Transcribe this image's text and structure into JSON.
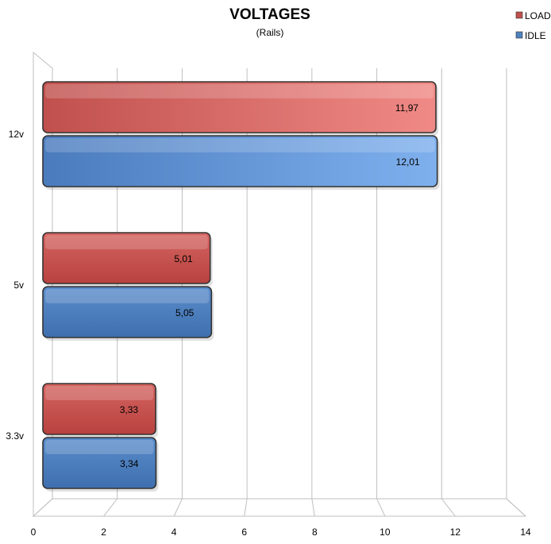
{
  "chart_data": {
    "type": "bar",
    "orientation": "horizontal",
    "title": "VOLTAGES",
    "subtitle": "(Rails)",
    "categories": [
      "12v",
      "5v",
      "3.3v"
    ],
    "series": [
      {
        "name": "LOAD",
        "values": [
          11.97,
          5.01,
          3.33
        ],
        "labels": [
          "11,97",
          "5,01",
          "3,33"
        ],
        "color": "#c0504d"
      },
      {
        "name": "IDLE",
        "values": [
          12.01,
          5.05,
          3.34
        ],
        "labels": [
          "12,01",
          "5,05",
          "3,34"
        ],
        "color": "#4f81bd"
      }
    ],
    "xlim": [
      0,
      14
    ],
    "xticks": [
      0,
      2,
      4,
      6,
      8,
      10,
      12,
      14
    ],
    "grid": true,
    "legend": "top-right"
  }
}
